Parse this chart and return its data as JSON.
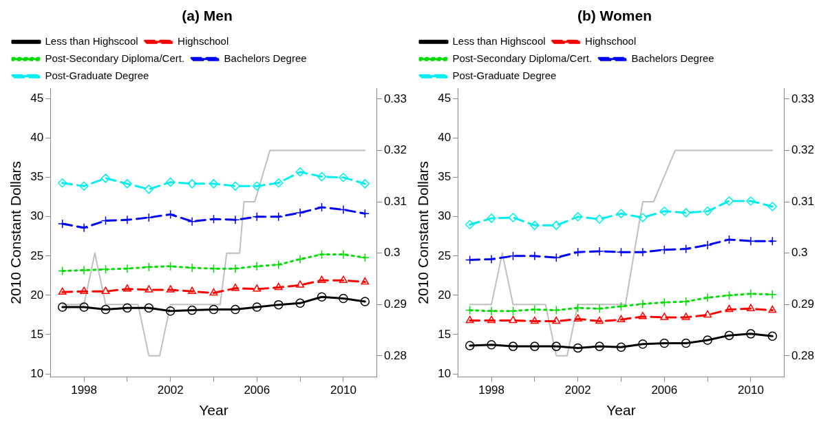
{
  "chart_data": [
    {
      "type": "line",
      "title": "(a) Men",
      "xlabel": "Year",
      "ylabel": "2010 Constant Dollars",
      "x": [
        1997,
        1998,
        1999,
        2000,
        2001,
        2002,
        2003,
        2004,
        2005,
        2006,
        2007,
        2008,
        2009,
        2010,
        2011
      ],
      "xlim": [
        1996.44,
        2011.56
      ],
      "xticks": [
        1998,
        {
          "value": 2000,
          "label": null
        },
        2002,
        {
          "value": 2004,
          "label": null
        },
        2006,
        {
          "value": 2008,
          "label": null
        },
        2010
      ],
      "ylim": [
        9.62,
        46.35
      ],
      "yticks": [
        10,
        15,
        20,
        25,
        30,
        35,
        40,
        45
      ],
      "y2lim": [
        0.2759,
        0.3321
      ],
      "y2ticks": [
        0.28,
        0.29,
        0.3,
        0.31,
        0.32,
        0.33
      ],
      "grid": false,
      "legend": "top left",
      "series": [
        {
          "name": "Less than Highscool",
          "color": "#000000",
          "line_style": "solid",
          "marker": "circle",
          "values": [
            18.5,
            18.5,
            18.2,
            18.4,
            18.4,
            18.0,
            18.1,
            18.2,
            18.2,
            18.5,
            18.8,
            19.0,
            19.8,
            19.6,
            19.2
          ]
        },
        {
          "name": "Highschool",
          "color": "#ff0000",
          "line_style": "dashed",
          "marker": "triangle",
          "values": [
            20.4,
            20.5,
            20.5,
            20.8,
            20.7,
            20.7,
            20.5,
            20.3,
            20.9,
            20.8,
            21.0,
            21.3,
            21.9,
            21.9,
            21.7
          ]
        },
        {
          "name": "Post-Secondary Diploma/Cert.",
          "color": "#00dd00",
          "line_style": "dotted",
          "marker": "cross",
          "values": [
            23.1,
            23.2,
            23.3,
            23.4,
            23.6,
            23.7,
            23.5,
            23.4,
            23.4,
            23.7,
            23.9,
            24.6,
            25.2,
            25.2,
            24.8
          ]
        },
        {
          "name": "Bachelors Degree",
          "color": "#0000ff",
          "line_style": "dashed",
          "marker": "cross",
          "values": [
            29.1,
            28.6,
            29.5,
            29.6,
            29.9,
            30.3,
            29.4,
            29.7,
            29.6,
            30.0,
            30.0,
            30.5,
            31.2,
            30.9,
            30.4
          ]
        },
        {
          "name": "Post-Graduate Degree",
          "color": "#00eeee",
          "line_style": "dashed",
          "marker": "diamond",
          "values": [
            34.3,
            33.9,
            34.9,
            34.2,
            33.5,
            34.4,
            34.2,
            34.2,
            33.9,
            33.9,
            34.3,
            35.7,
            35.1,
            35.0,
            34.2
          ]
        },
        {
          "color": "#bebebe",
          "axis": "y2",
          "line_style": "solid",
          "marker": "none",
          "x": [
            1997,
            1998,
            1998.5,
            1999,
            2000.5,
            2001,
            2001.5,
            2002,
            2004.3,
            2004.6,
            2005.2,
            2005.4,
            2005.9,
            2006.6,
            2011
          ],
          "values": [
            0.29,
            0.29,
            0.3,
            0.29,
            0.29,
            0.28,
            0.28,
            0.29,
            0.29,
            0.3,
            0.3,
            0.31,
            0.31,
            0.32,
            0.32
          ]
        }
      ]
    },
    {
      "type": "line",
      "title": "(b) Women",
      "xlabel": "Year",
      "ylabel": "2010 Constant Dollars",
      "x": [
        1997,
        1998,
        1999,
        2000,
        2001,
        2002,
        2003,
        2004,
        2005,
        2006,
        2007,
        2008,
        2009,
        2010,
        2011
      ],
      "xlim": [
        1996.44,
        2011.56
      ],
      "xticks": [
        1998,
        {
          "value": 2000,
          "label": null
        },
        2002,
        {
          "value": 2004,
          "label": null
        },
        2006,
        {
          "value": 2008,
          "label": null
        },
        2010
      ],
      "ylim": [
        9.62,
        46.35
      ],
      "yticks": [
        10,
        15,
        20,
        25,
        30,
        35,
        40,
        45
      ],
      "y2lim": [
        0.2759,
        0.3321
      ],
      "y2ticks": [
        0.28,
        0.29,
        0.3,
        0.31,
        0.32,
        0.33
      ],
      "grid": false,
      "legend": "top left",
      "series": [
        {
          "name": "Less than Highscool",
          "color": "#000000",
          "line_style": "solid",
          "marker": "circle",
          "values": [
            13.6,
            13.7,
            13.5,
            13.5,
            13.5,
            13.3,
            13.5,
            13.4,
            13.8,
            13.9,
            13.9,
            14.3,
            14.9,
            15.1,
            14.8
          ]
        },
        {
          "name": "Highschool",
          "color": "#ff0000",
          "line_style": "dashed",
          "marker": "triangle",
          "values": [
            16.8,
            16.8,
            16.8,
            16.7,
            16.7,
            17.0,
            16.7,
            16.9,
            17.3,
            17.2,
            17.2,
            17.5,
            18.2,
            18.3,
            18.1
          ]
        },
        {
          "name": "Post-Secondary Diploma/Cert.",
          "color": "#00dd00",
          "line_style": "dotted",
          "marker": "cross",
          "values": [
            18.1,
            18.0,
            18.0,
            18.2,
            18.1,
            18.4,
            18.3,
            18.6,
            18.9,
            19.1,
            19.2,
            19.7,
            20.0,
            20.2,
            20.1
          ]
        },
        {
          "name": "Bachelors Degree",
          "color": "#0000ff",
          "line_style": "dashed",
          "marker": "cross",
          "values": [
            24.5,
            24.6,
            25.0,
            25.0,
            24.8,
            25.5,
            25.6,
            25.5,
            25.5,
            25.8,
            25.9,
            26.4,
            27.1,
            26.9,
            26.9
          ]
        },
        {
          "name": "Post-Graduate Degree",
          "color": "#00eeee",
          "line_style": "dashed",
          "marker": "diamond",
          "values": [
            29.0,
            29.8,
            29.9,
            28.9,
            28.9,
            30.0,
            29.7,
            30.4,
            29.9,
            30.7,
            30.5,
            30.7,
            32.0,
            32.0,
            31.3
          ]
        },
        {
          "color": "#bebebe",
          "axis": "y2",
          "line_style": "solid",
          "marker": "none",
          "x": [
            1997,
            1998,
            1998.5,
            1999,
            2000.5,
            2001,
            2001.5,
            2002,
            2004.2,
            2005.0,
            2005.5,
            2006.5,
            2011
          ],
          "values": [
            0.29,
            0.29,
            0.3,
            0.29,
            0.29,
            0.28,
            0.28,
            0.29,
            0.29,
            0.31,
            0.31,
            0.32,
            0.32
          ]
        }
      ]
    }
  ]
}
